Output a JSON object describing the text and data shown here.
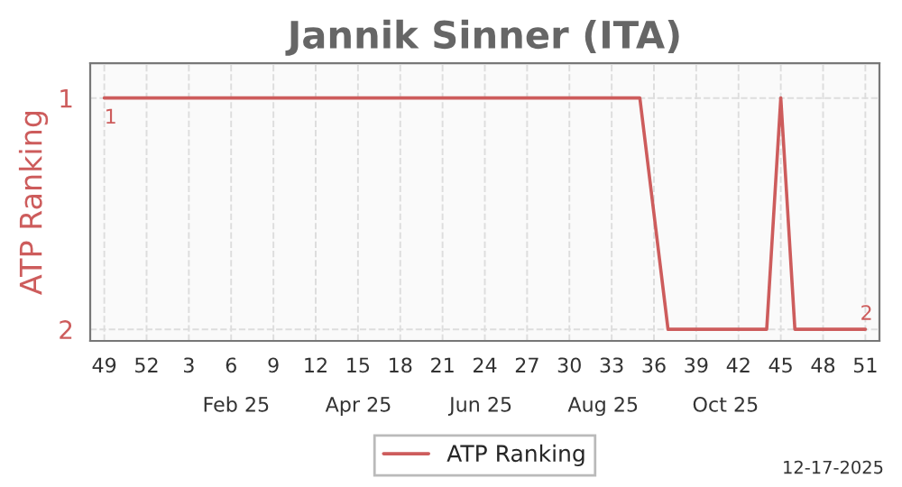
{
  "chart_data": {
    "type": "line",
    "title": "Jannik Sinner (ITA)",
    "ylabel": "ATP Ranking",
    "categories": [
      "49",
      null,
      null,
      "52",
      null,
      null,
      "3",
      null,
      null,
      "6",
      null,
      null,
      "9",
      null,
      null,
      "12",
      null,
      null,
      "15",
      null,
      null,
      "18",
      null,
      null,
      "21",
      null,
      null,
      "24",
      null,
      null,
      "27",
      null,
      null,
      "30",
      null,
      null,
      "33",
      null,
      null,
      "36",
      null,
      null,
      "39",
      null,
      null,
      "42",
      null,
      null,
      "45",
      null,
      null,
      "48",
      null,
      null,
      "51"
    ],
    "series": [
      {
        "name": "ATP Ranking",
        "color": "#cd5c5c",
        "values": [
          1,
          1,
          1,
          1,
          1,
          1,
          1,
          1,
          1,
          1,
          1,
          1,
          1,
          1,
          1,
          1,
          1,
          1,
          1,
          1,
          1,
          1,
          1,
          1,
          1,
          1,
          1,
          1,
          1,
          1,
          1,
          1,
          1,
          1,
          1,
          1,
          1,
          1,
          1,
          null,
          2,
          2,
          2,
          2,
          2,
          2,
          2,
          2,
          1,
          2,
          2,
          2,
          2,
          2,
          2
        ]
      }
    ],
    "ylim": [
      2.05,
      0.85
    ],
    "yticks": [
      1,
      2
    ],
    "grid": true,
    "legend": "bottom",
    "marker": "none",
    "line_style": "solid",
    "annotations": [
      {
        "text": "1",
        "x": "49",
        "y": 1
      },
      {
        "text": "2",
        "x": "51",
        "y": 2
      },
      "Feb 25",
      "Apr 25",
      "Jun 25",
      "Aug 25",
      "Oct 25",
      "12-17-2025"
    ]
  }
}
